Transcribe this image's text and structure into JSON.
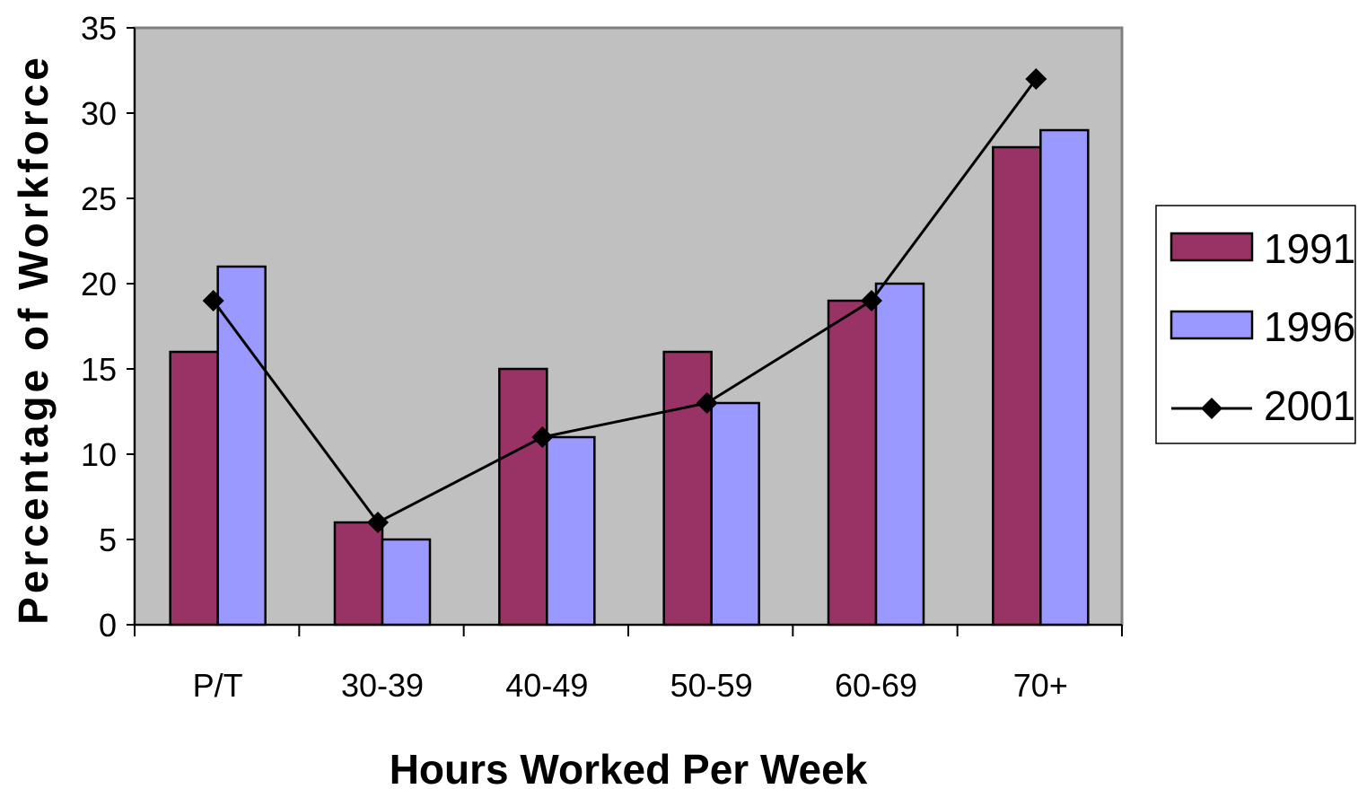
{
  "chart_data": {
    "type": "bar",
    "categories": [
      "P/T",
      "30-39",
      "40-49",
      "50-59",
      "60-69",
      "70+"
    ],
    "series": [
      {
        "name": "1991",
        "type": "bar",
        "color": "#993366",
        "values": [
          16,
          6,
          15,
          16,
          19,
          28
        ]
      },
      {
        "name": "1996",
        "type": "bar",
        "color": "#9999FF",
        "values": [
          21,
          5,
          11,
          13,
          20,
          29
        ]
      },
      {
        "name": "2001",
        "type": "line",
        "color": "#000000",
        "marker": "diamond",
        "values": [
          19,
          6,
          11,
          13,
          19,
          32
        ]
      }
    ],
    "xlabel": "Hours Worked Per Week",
    "ylabel": "Percentage of Workforce",
    "ylim": [
      0,
      35
    ],
    "yticks": [
      "0",
      "5",
      "10",
      "15",
      "20",
      "25",
      "30",
      "35"
    ],
    "plot_background": "#C0C0C0",
    "grid": false,
    "legend_position": "right"
  }
}
